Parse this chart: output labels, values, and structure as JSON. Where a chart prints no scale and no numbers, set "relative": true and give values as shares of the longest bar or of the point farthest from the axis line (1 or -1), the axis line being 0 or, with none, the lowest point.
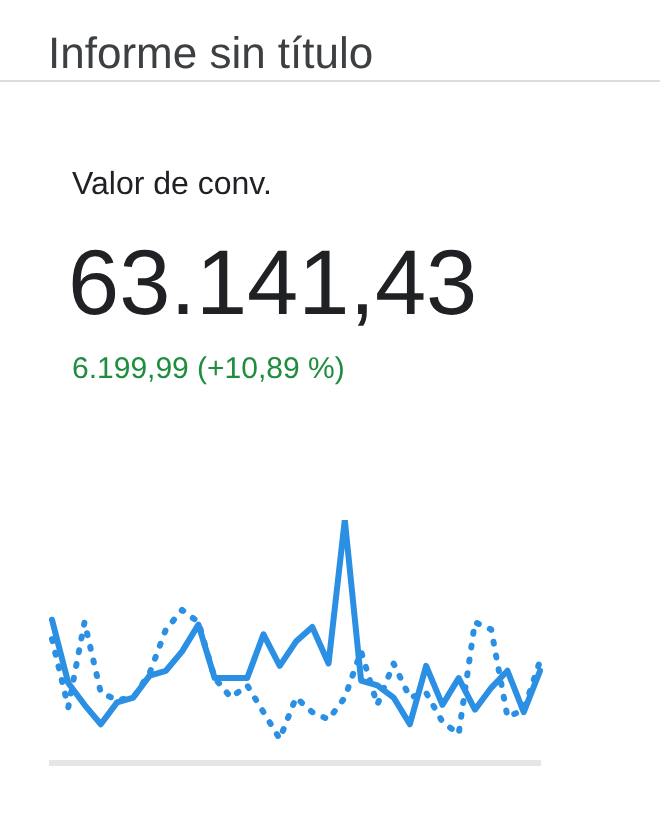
{
  "chart_data": {
    "type": "line",
    "title": "Informe sin título",
    "subtitle": "Valor de conv.",
    "annotations": [
      "63.141,43",
      "6.199,99 (+10,89 %)"
    ],
    "relative": true,
    "categories": [
      null,
      null,
      null,
      null,
      null,
      null,
      null,
      null,
      null,
      null,
      null,
      null,
      null,
      null,
      null,
      null,
      null,
      null,
      null,
      null,
      null,
      null,
      null,
      null,
      null,
      null,
      null,
      null,
      null,
      null,
      null
    ],
    "series": [
      {
        "color": "#2b8fe3",
        "line_style": "solid",
        "values": [
          0.59,
          0.33,
          0.24,
          0.16,
          0.25,
          0.27,
          0.36,
          0.38,
          0.46,
          0.57,
          0.35,
          0.35,
          0.35,
          0.53,
          0.4,
          0.5,
          0.56,
          0.41,
          1,
          0.34,
          0.32,
          0.27,
          0.16,
          0.4,
          0.24,
          0.35,
          0.22,
          0.31,
          0.38,
          0.21,
          0.38
        ]
      },
      {
        "color": "#2b8fe3",
        "line_style": "dotted",
        "values": [
          0.51,
          0.23,
          0.58,
          0.29,
          0.26,
          0.27,
          0.37,
          0.55,
          0.63,
          0.58,
          0.35,
          0.27,
          0.32,
          0.21,
          0.1,
          0.27,
          0.21,
          0.18,
          0.27,
          0.46,
          0.24,
          0.41,
          0.27,
          0.29,
          0.17,
          0.12,
          0.58,
          0.55,
          0.19,
          0.22,
          0.42
        ]
      }
    ],
    "marker": "none",
    "grid": false,
    "legend": false
  }
}
